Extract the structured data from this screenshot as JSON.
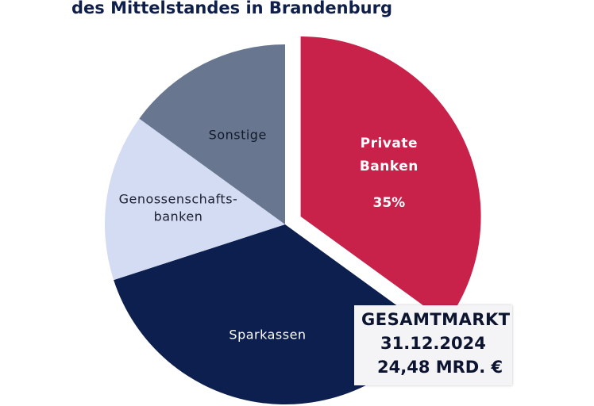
{
  "title": "des Mittelstandes in Brandenburg",
  "chart_data": {
    "type": "pie",
    "slices": [
      {
        "label": "Private Banken",
        "label_lines": [
          "Private",
          "Banken"
        ],
        "value": 35,
        "value_label": "35%",
        "color": "#c8224b",
        "exploded": true
      },
      {
        "label": "Sparkassen",
        "label_lines": [
          "Sparkassen"
        ],
        "value": 35,
        "color": "#0d1f4e"
      },
      {
        "label": "Genossenschaftsbanken",
        "label_lines": [
          "Genossenschafts-",
          "banken"
        ],
        "value": 15,
        "color": "#d3dcf3"
      },
      {
        "label": "Sonstige",
        "label_lines": [
          "Sonstige"
        ],
        "value": 15,
        "color": "#68778f"
      }
    ],
    "start_angle_deg": 0,
    "direction": "clockwise"
  },
  "total_box": {
    "line1": "GESAMTMARKT",
    "line2": "31.12.2024",
    "line3": "24,48 MRD. €"
  }
}
